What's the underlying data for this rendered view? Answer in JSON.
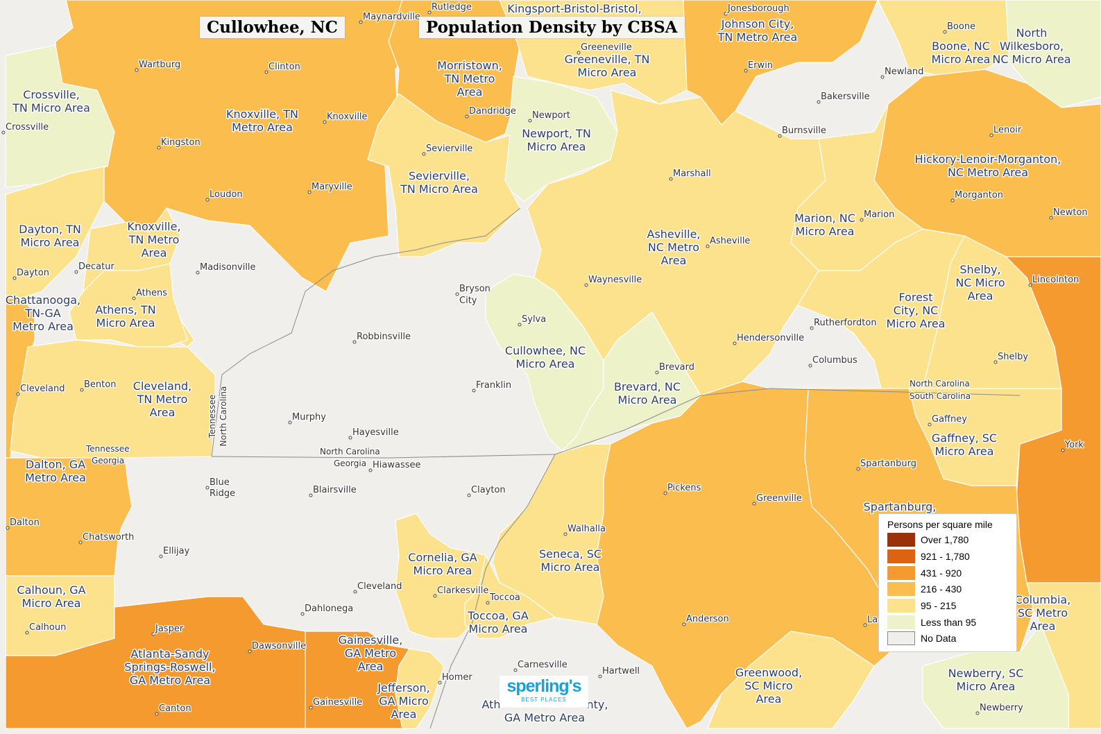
{
  "title_left": "Cullowhee, NC",
  "title_right": "Population Density by CBSA",
  "colors": {
    "over_1780": "#9a3108",
    "d921_1780": "#dd6212",
    "d431_920": "#f59a2e",
    "d216_430": "#fbbd4e",
    "d95_215": "#fde28e",
    "less_95": "#eef2c9",
    "no_data": "#f0efeb"
  },
  "legend": {
    "title": "Persons per square mile",
    "items": [
      {
        "label": "Over 1,780",
        "color": "#9a3108"
      },
      {
        "label": "921 - 1,780",
        "color": "#dd6212"
      },
      {
        "label": "431 - 920",
        "color": "#f59a2e"
      },
      {
        "label": "216 - 430",
        "color": "#fbbd4e"
      },
      {
        "label": "95 - 215",
        "color": "#fde28e"
      },
      {
        "label": "Less than 95",
        "color": "#eef2c9"
      },
      {
        "label": "No Data",
        "color": "#f0efeb"
      }
    ]
  },
  "logo": {
    "brand": "sperling's",
    "sub": "BEST PLACES"
  },
  "areas": [
    {
      "lines": [
        "Knoxville, TN",
        "Metro Area"
      ]
    },
    {
      "lines": [
        "Morristown,",
        "TN Metro",
        "Area"
      ]
    },
    {
      "lines": [
        "Kingsport-Bristol-Bristol,"
      ]
    },
    {
      "lines": [
        "Greeneville, TN",
        "Micro Area"
      ]
    },
    {
      "lines": [
        "Johnson City,",
        "TN Metro Area"
      ]
    },
    {
      "lines": [
        "Boone, NC",
        "Micro Area"
      ]
    },
    {
      "lines": [
        "North",
        "Wilkesboro,",
        "NC Micro Area"
      ]
    },
    {
      "lines": [
        "Crossville,",
        "TN Micro Area"
      ]
    },
    {
      "lines": [
        "Newport, TN",
        "Micro Area"
      ]
    },
    {
      "lines": [
        "Sevierville,",
        "TN Micro Area"
      ]
    },
    {
      "lines": [
        "Hickory-Lenoir-Morganton,",
        "NC Metro Area"
      ]
    },
    {
      "lines": [
        "Dayton, TN",
        "Micro Area"
      ]
    },
    {
      "lines": [
        "Knoxville,",
        "TN Metro",
        "Area"
      ]
    },
    {
      "lines": [
        "Marion, NC",
        "Micro Area"
      ]
    },
    {
      "lines": [
        "Asheville,",
        "NC Metro",
        "Area"
      ]
    },
    {
      "lines": [
        "Chattanooga,",
        "TN-GA",
        "Metro Area"
      ]
    },
    {
      "lines": [
        "Athens, TN",
        "Micro Area"
      ]
    },
    {
      "lines": [
        "Shelby,",
        "NC Micro",
        "Area"
      ]
    },
    {
      "lines": [
        "Forest",
        "City, NC",
        "Micro Area"
      ]
    },
    {
      "lines": [
        "Cullowhee, NC",
        "Micro Area"
      ]
    },
    {
      "lines": [
        "Cleveland,",
        "TN Metro",
        "Area"
      ]
    },
    {
      "lines": [
        "Brevard, NC",
        "Micro Area"
      ]
    },
    {
      "lines": [
        "Gaffney, SC",
        "Micro Area"
      ]
    },
    {
      "lines": [
        "Dalton, GA",
        "Metro Area"
      ]
    },
    {
      "lines": [
        "Spartanburg,"
      ]
    },
    {
      "lines": [
        "Seneca, SC",
        "Micro Area"
      ]
    },
    {
      "lines": [
        "Cornelia, GA",
        "Micro Area"
      ]
    },
    {
      "lines": [
        "Calhoun, GA",
        "Micro Area"
      ]
    },
    {
      "lines": [
        "Toccoa, GA",
        "Micro Area"
      ]
    },
    {
      "lines": [
        "Columbia,",
        "SC Metro",
        "Area"
      ]
    },
    {
      "lines": [
        "Atlanta-Sandy",
        "Springs-Roswell,",
        "GA Metro Area"
      ]
    },
    {
      "lines": [
        "Gainesville,",
        "GA Metro",
        "Area"
      ]
    },
    {
      "lines": [
        "Greenwood,",
        "SC Micro",
        "Area"
      ]
    },
    {
      "lines": [
        "Newberry, SC",
        "Micro Area"
      ]
    },
    {
      "lines": [
        "Jefferson,",
        "GA Micro",
        "Area"
      ]
    },
    {
      "lines": [
        "Ath"
      ]
    },
    {
      "lines": [
        "nty,"
      ]
    },
    {
      "lines": [
        "GA Metro Area"
      ]
    }
  ],
  "towns": [
    "Rutledge",
    "Maynardville",
    "Jonesborough",
    "Boone",
    "Wartburg",
    "Clinton",
    "Greeneville",
    "Newland",
    "Erwin",
    "Knoxville",
    "Dandridge",
    "Newport",
    "Bakersville",
    "Crossville",
    "Lenoir",
    "Burnsville",
    "Kingston",
    "Sevierville",
    "Marshall",
    "Maryville",
    "Loudon",
    "Morganton",
    "Newton",
    "Marion",
    "Asheville",
    "Decatur",
    "Madisonville",
    "Dayton",
    "Lincolnton",
    "Waynesville",
    "Athens",
    "Bryson",
    "City",
    "Sylva",
    "Rutherfordton",
    "Hendersonville",
    "Robbinsville",
    "Shelby",
    "Columbus",
    "Brevard",
    "Cleveland",
    "Benton",
    "Franklin",
    "Gaffney",
    "Murphy",
    "Hayesville",
    "Hiawassee",
    "York",
    "Spartanburg",
    "Blue",
    "Ridge",
    "Blairsville",
    "Pickens",
    "Clayton",
    "Greenville",
    "Dalton",
    "Walhalla",
    "Chatsworth",
    "Ellijay",
    "Cleveland",
    "Clarkesville",
    "Toccoa",
    "Dahlonega",
    "Anderson",
    "La",
    "Calhoun",
    "Jasper",
    "Dawsonville",
    "Carnesville",
    "Homer",
    "Hartwell",
    "Gainesville",
    "Canton",
    "Newberry"
  ],
  "states": [
    "North Carolina",
    "South Carolina",
    "Tennessee",
    "Georgia",
    "North Carolina",
    "Georgia",
    "Tennessee",
    "North Carolina"
  ]
}
